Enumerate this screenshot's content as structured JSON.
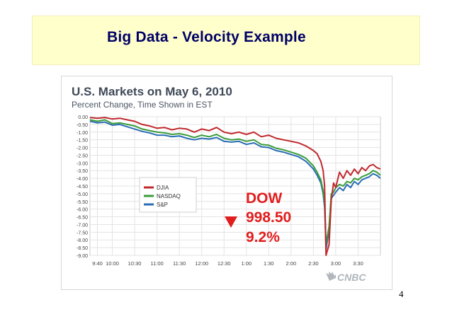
{
  "slide": {
    "title": "Big Data - Velocity Example",
    "page_number": "4"
  },
  "brand": "CNBC",
  "colors": {
    "banner_bg": "#ffffcc",
    "title_text": "#000066",
    "djia": "#c0282d",
    "nasdaq": "#3a9c3a",
    "sp": "#2a6db5",
    "callout": "#e21d1d"
  },
  "callout": {
    "index": "DOW",
    "points": "998.50",
    "percent": "9.2%",
    "icon": "down-triangle-icon"
  },
  "chart_data": {
    "type": "line",
    "title": "U.S. Markets on May 6, 2010",
    "subtitle": "Percent Change, Time Shown in EST",
    "xlabel": "",
    "ylabel": "",
    "x_ticks": [
      "9:40",
      "10:00",
      "10:30",
      "11:00",
      "11:30",
      "12:00",
      "12:30",
      "1:00",
      "1:30",
      "2:00",
      "2:30",
      "3:00",
      "3:30"
    ],
    "x_tick_hours": [
      9.667,
      10,
      10.5,
      11,
      11.5,
      12,
      12.5,
      13,
      13.5,
      14,
      14.5,
      15,
      15.5
    ],
    "y_ticks": [
      "0.00",
      "-0.50",
      "-1.00",
      "-1.50",
      "-2.00",
      "-2.50",
      "-3.00",
      "-3.50",
      "-4.00",
      "-4.50",
      "-5.00",
      "-5.50",
      "-6.00",
      "-6.50",
      "-7.00",
      "-7.50",
      "-8.00",
      "-8.50",
      "-9.00"
    ],
    "xlim_hours": [
      9.5,
      16
    ],
    "ylim": [
      -9,
      0
    ],
    "grid": true,
    "legend_position": "center-left",
    "series": [
      {
        "name": "DJIA",
        "x": [
          9.5,
          9.667,
          9.833,
          10,
          10.167,
          10.333,
          10.5,
          10.667,
          10.833,
          11,
          11.167,
          11.333,
          11.5,
          11.667,
          11.833,
          12,
          12.167,
          12.333,
          12.5,
          12.667,
          12.833,
          13,
          13.167,
          13.333,
          13.5,
          13.667,
          13.833,
          14,
          14.167,
          14.333,
          14.5,
          14.583,
          14.667,
          14.717,
          14.75,
          14.783,
          14.85,
          14.9,
          14.95,
          15,
          15.083,
          15.167,
          15.25,
          15.333,
          15.417,
          15.5,
          15.583,
          15.667,
          15.75,
          15.833,
          15.917,
          16
        ],
        "values": [
          -0.05,
          -0.1,
          -0.05,
          -0.15,
          -0.1,
          -0.2,
          -0.3,
          -0.5,
          -0.6,
          -0.75,
          -0.7,
          -0.85,
          -0.75,
          -0.8,
          -1.0,
          -0.8,
          -0.9,
          -0.7,
          -1.0,
          -1.1,
          -1.0,
          -1.15,
          -1.0,
          -1.3,
          -1.2,
          -1.4,
          -1.5,
          -1.6,
          -1.7,
          -1.9,
          -2.2,
          -2.4,
          -2.9,
          -3.5,
          -4.5,
          -9.2,
          -8.3,
          -5.4,
          -4.3,
          -4.6,
          -3.6,
          -4.0,
          -3.5,
          -3.8,
          -3.4,
          -3.7,
          -3.3,
          -3.5,
          -3.2,
          -3.1,
          -3.3,
          -3.4
        ]
      },
      {
        "name": "NASDAQ",
        "x": [
          9.5,
          9.667,
          9.833,
          10,
          10.167,
          10.333,
          10.5,
          10.667,
          10.833,
          11,
          11.167,
          11.333,
          11.5,
          11.667,
          11.833,
          12,
          12.167,
          12.333,
          12.5,
          12.667,
          12.833,
          13,
          13.167,
          13.333,
          13.5,
          13.667,
          13.833,
          14,
          14.167,
          14.333,
          14.5,
          14.583,
          14.667,
          14.717,
          14.75,
          14.783,
          14.85,
          14.9,
          14.95,
          15,
          15.083,
          15.167,
          15.25,
          15.333,
          15.417,
          15.5,
          15.583,
          15.667,
          15.75,
          15.833,
          15.917,
          16
        ],
        "values": [
          -0.2,
          -0.3,
          -0.2,
          -0.45,
          -0.4,
          -0.5,
          -0.6,
          -0.8,
          -0.9,
          -1.0,
          -1.05,
          -1.15,
          -1.1,
          -1.2,
          -1.35,
          -1.2,
          -1.3,
          -1.15,
          -1.4,
          -1.5,
          -1.45,
          -1.6,
          -1.5,
          -1.8,
          -1.85,
          -2.05,
          -2.15,
          -2.3,
          -2.45,
          -2.7,
          -3.2,
          -3.6,
          -4.1,
          -4.8,
          -5.6,
          -8.3,
          -7.1,
          -5.0,
          -4.9,
          -4.6,
          -4.4,
          -4.5,
          -4.2,
          -4.3,
          -4.0,
          -4.1,
          -3.9,
          -3.8,
          -3.7,
          -3.5,
          -3.6,
          -3.8
        ]
      },
      {
        "name": "S&P",
        "x": [
          9.5,
          9.667,
          9.833,
          10,
          10.167,
          10.333,
          10.5,
          10.667,
          10.833,
          11,
          11.167,
          11.333,
          11.5,
          11.667,
          11.833,
          12,
          12.167,
          12.333,
          12.5,
          12.667,
          12.833,
          13,
          13.167,
          13.333,
          13.5,
          13.667,
          13.833,
          14,
          14.167,
          14.333,
          14.5,
          14.583,
          14.667,
          14.717,
          14.75,
          14.783,
          14.85,
          14.9,
          14.95,
          15,
          15.083,
          15.167,
          15.25,
          15.333,
          15.417,
          15.5,
          15.583,
          15.667,
          15.75,
          15.833,
          15.917,
          16
        ],
        "values": [
          -0.3,
          -0.4,
          -0.35,
          -0.55,
          -0.5,
          -0.65,
          -0.8,
          -0.95,
          -1.05,
          -1.2,
          -1.2,
          -1.3,
          -1.25,
          -1.4,
          -1.5,
          -1.4,
          -1.45,
          -1.35,
          -1.6,
          -1.65,
          -1.6,
          -1.8,
          -1.7,
          -1.95,
          -2.0,
          -2.2,
          -2.3,
          -2.45,
          -2.6,
          -2.9,
          -3.4,
          -3.8,
          -4.3,
          -5.0,
          -5.9,
          -8.6,
          -7.4,
          -5.3,
          -5.1,
          -4.9,
          -4.6,
          -4.8,
          -4.4,
          -4.6,
          -4.2,
          -4.4,
          -4.1,
          -4.0,
          -3.9,
          -3.7,
          -3.8,
          -4.0
        ]
      }
    ]
  }
}
